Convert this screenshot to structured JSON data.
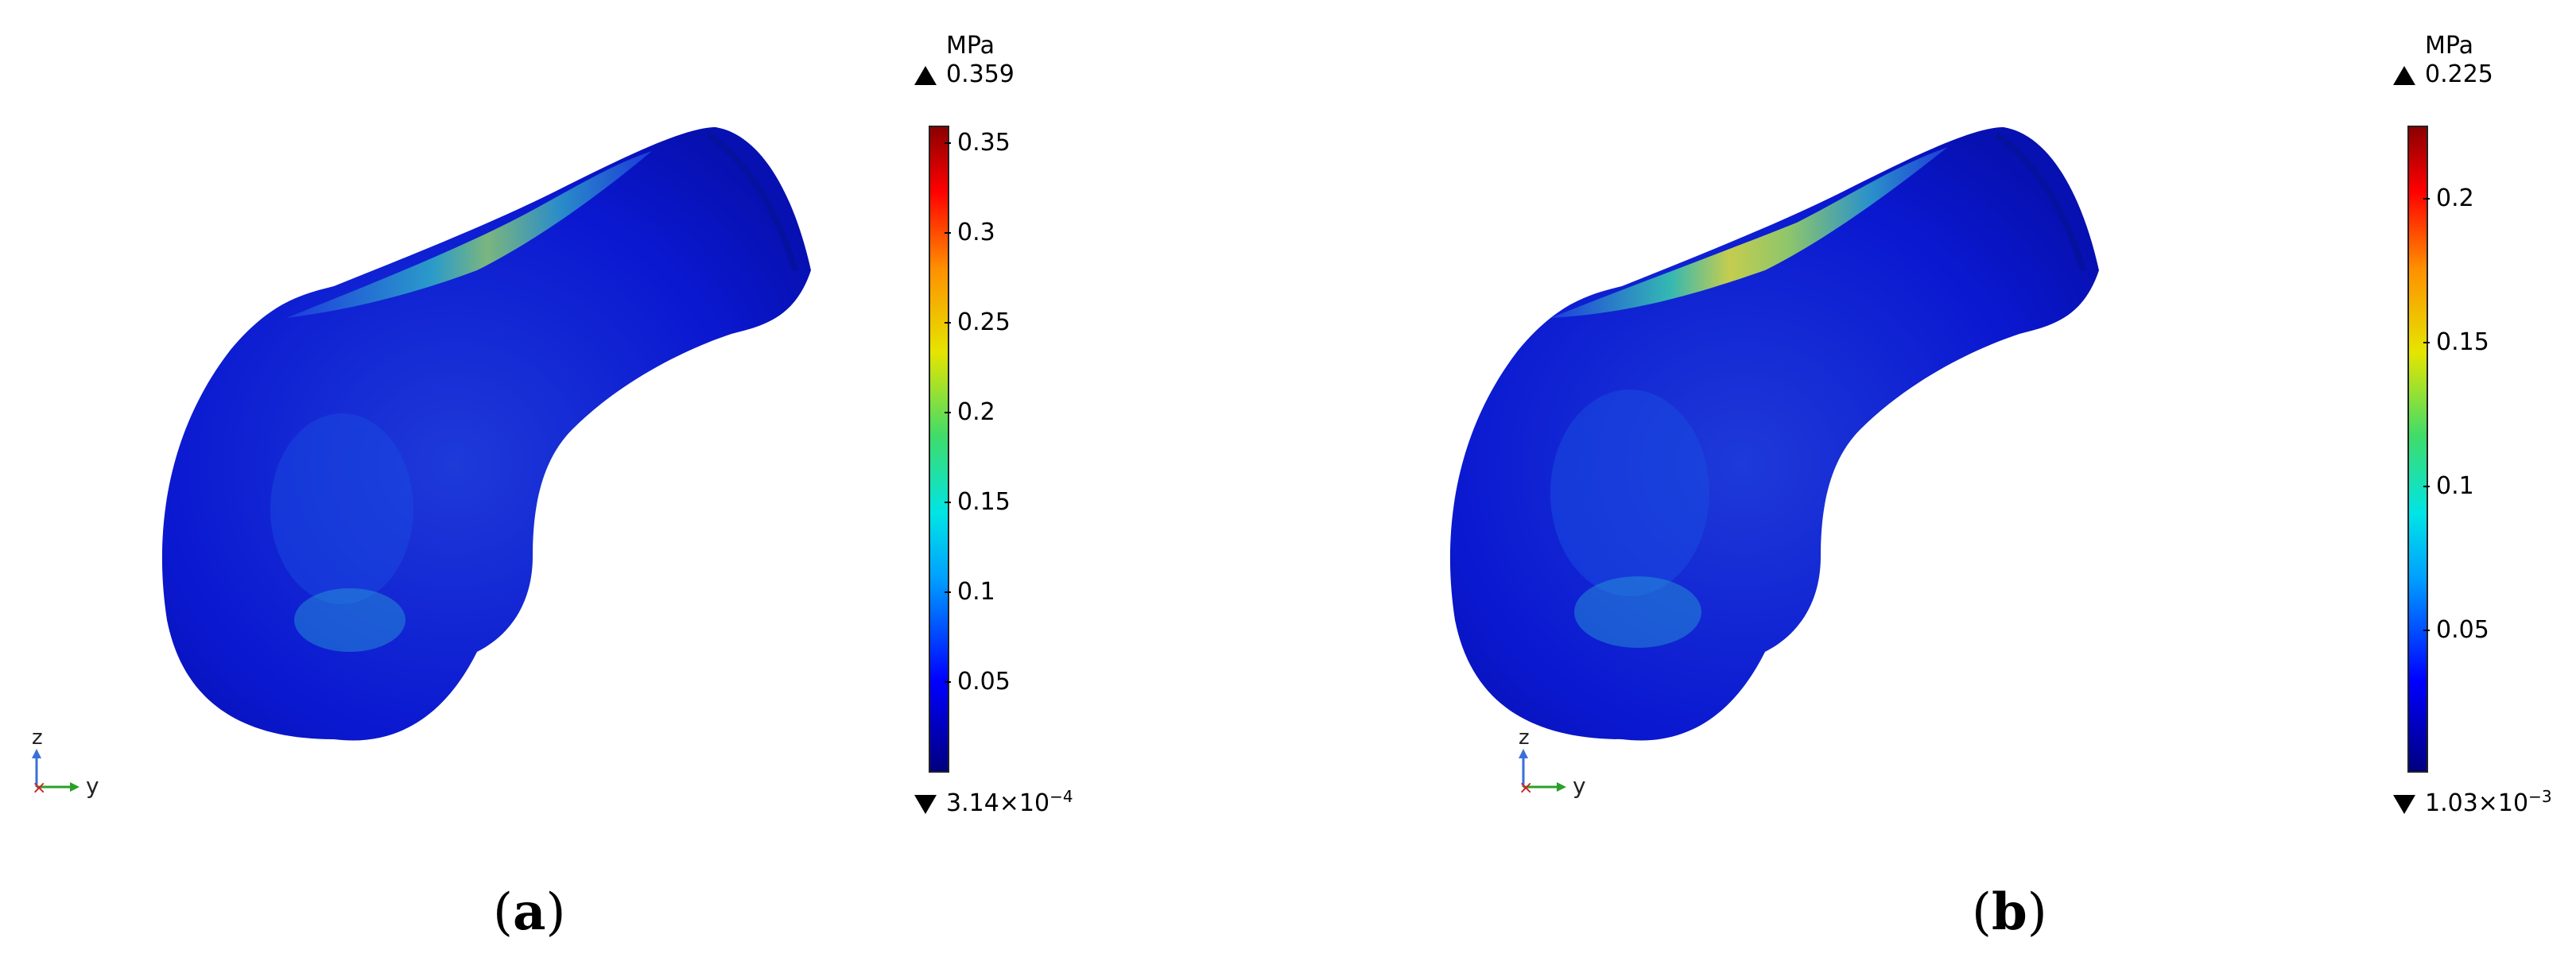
{
  "colors": {
    "low": "#0a14d8",
    "mid": "#00d2d2",
    "high": "#b40000",
    "text": "#000000"
  },
  "panels": [
    {
      "unit": "MPa",
      "max_label": "0.359",
      "min_label": "3.14×10",
      "min_exp": "−4",
      "ticks": [
        {
          "value": 0.35,
          "label": "0.35"
        },
        {
          "value": 0.3,
          "label": "0.3"
        },
        {
          "value": 0.25,
          "label": "0.25"
        },
        {
          "value": 0.2,
          "label": "0.2"
        },
        {
          "value": 0.15,
          "label": "0.15"
        },
        {
          "value": 0.1,
          "label": "0.1"
        },
        {
          "value": 0.05,
          "label": "0.05"
        }
      ],
      "range": [
        0.000314,
        0.359
      ],
      "axis": {
        "z": "z",
        "y": "y",
        "x_marker": "×"
      },
      "caption": {
        "open": "(",
        "letter": "a",
        "close": ")"
      }
    },
    {
      "unit": "MPa",
      "max_label": "0.225",
      "min_label": "1.03×10",
      "min_exp": "−3",
      "ticks": [
        {
          "value": 0.2,
          "label": "0.2"
        },
        {
          "value": 0.15,
          "label": "0.15"
        },
        {
          "value": 0.1,
          "label": "0.1"
        },
        {
          "value": 0.05,
          "label": "0.05"
        }
      ],
      "range": [
        0.00103,
        0.225
      ],
      "axis": {
        "z": "z",
        "y": "y",
        "x_marker": "×"
      },
      "caption": {
        "open": "(",
        "letter": "b",
        "close": ")"
      }
    }
  ]
}
